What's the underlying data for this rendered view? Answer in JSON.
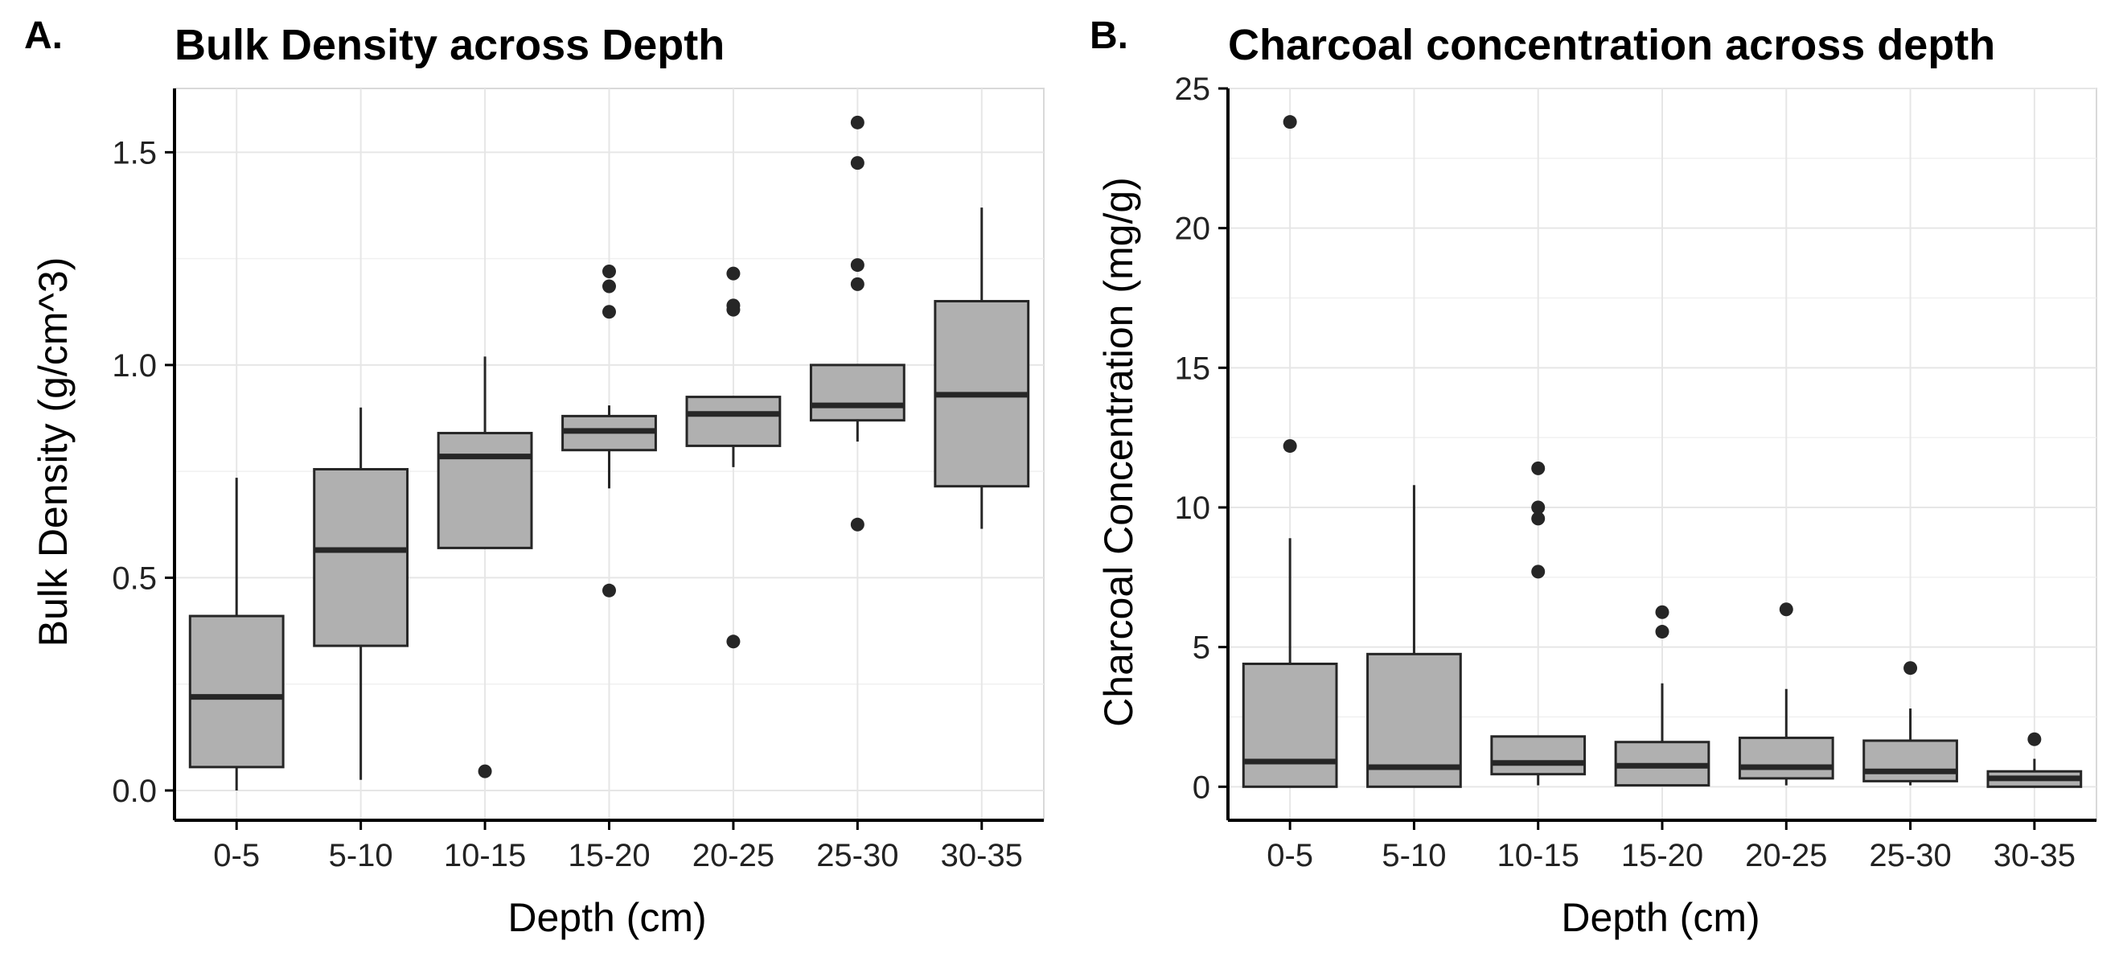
{
  "chart_data": [
    {
      "type": "box",
      "panel_label": "A.",
      "title": "Bulk Density across Depth",
      "xlabel": "Depth (cm)",
      "ylabel": "Bulk Density (g/cm^3)",
      "ylim": [
        -0.07,
        1.65
      ],
      "yticks": [
        0.0,
        0.5,
        1.0,
        1.5
      ],
      "ytick_labels": [
        "0.0",
        "0.5",
        "1.0",
        "1.5"
      ],
      "grid": true,
      "categories": [
        "0-5",
        "5-10",
        "10-15",
        "15-20",
        "20-25",
        "25-30",
        "30-35"
      ],
      "boxes": [
        {
          "whisker_low": 0.0,
          "q1": 0.055,
          "median": 0.22,
          "q3": 0.41,
          "whisker_high": 0.735,
          "outliers": []
        },
        {
          "whisker_low": 0.025,
          "q1": 0.34,
          "median": 0.565,
          "q3": 0.755,
          "whisker_high": 0.9,
          "outliers": []
        },
        {
          "whisker_low": 0.57,
          "q1": 0.57,
          "median": 0.785,
          "q3": 0.84,
          "whisker_high": 1.02,
          "outliers": [
            0.045
          ]
        },
        {
          "whisker_low": 0.71,
          "q1": 0.8,
          "median": 0.845,
          "q3": 0.88,
          "whisker_high": 0.905,
          "outliers": [
            0.47,
            1.125,
            1.185,
            1.22
          ]
        },
        {
          "whisker_low": 0.76,
          "q1": 0.81,
          "median": 0.885,
          "q3": 0.925,
          "whisker_high": 0.925,
          "outliers": [
            0.35,
            1.13,
            1.14,
            1.215
          ]
        },
        {
          "whisker_low": 0.82,
          "q1": 0.87,
          "median": 0.905,
          "q3": 1.0,
          "whisker_high": 1.0,
          "outliers": [
            0.625,
            1.19,
            1.235,
            1.475,
            1.57
          ]
        },
        {
          "whisker_low": 0.615,
          "q1": 0.715,
          "median": 0.93,
          "q3": 1.15,
          "whisker_high": 1.37,
          "outliers": []
        }
      ]
    },
    {
      "type": "box",
      "panel_label": "B.",
      "title": "Charcoal concentration across depth",
      "xlabel": "Depth (cm)",
      "ylabel": "Charcoal Concentration (mg/g)",
      "ylim": [
        -1.2,
        25.0
      ],
      "yticks": [
        0,
        5,
        10,
        15,
        20,
        25
      ],
      "ytick_labels": [
        "0",
        "5",
        "10",
        "15",
        "20",
        "25"
      ],
      "grid": true,
      "categories": [
        "0-5",
        "5-10",
        "10-15",
        "15-20",
        "20-25",
        "25-30",
        "30-35"
      ],
      "boxes": [
        {
          "whisker_low": 0.0,
          "q1": 0.0,
          "median": 0.9,
          "q3": 4.4,
          "whisker_high": 8.9,
          "outliers": [
            12.2,
            23.8
          ]
        },
        {
          "whisker_low": 0.0,
          "q1": 0.0,
          "median": 0.7,
          "q3": 4.75,
          "whisker_high": 10.8,
          "outliers": []
        },
        {
          "whisker_low": 0.05,
          "q1": 0.45,
          "median": 0.85,
          "q3": 1.8,
          "whisker_high": 1.8,
          "outliers": [
            7.7,
            9.6,
            10.0,
            11.4
          ]
        },
        {
          "whisker_low": 0.05,
          "q1": 0.05,
          "median": 0.75,
          "q3": 1.6,
          "whisker_high": 3.7,
          "outliers": [
            5.55,
            6.25
          ]
        },
        {
          "whisker_low": 0.05,
          "q1": 0.3,
          "median": 0.7,
          "q3": 1.75,
          "whisker_high": 3.5,
          "outliers": [
            6.35
          ]
        },
        {
          "whisker_low": 0.05,
          "q1": 0.2,
          "median": 0.55,
          "q3": 1.65,
          "whisker_high": 2.8,
          "outliers": [
            4.25
          ]
        },
        {
          "whisker_low": 0.0,
          "q1": 0.0,
          "median": 0.3,
          "q3": 0.55,
          "whisker_high": 1.0,
          "outliers": [
            1.7
          ]
        }
      ]
    }
  ],
  "colors": {
    "box_fill": "#b0b0b0",
    "stroke": "#262626",
    "grid": "#e6e6e6",
    "axis": "#000000"
  }
}
